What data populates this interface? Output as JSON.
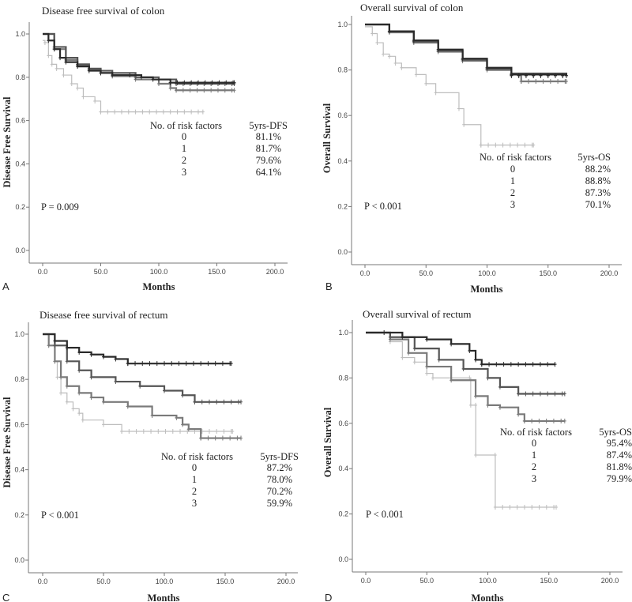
{
  "chart_data": [
    {
      "type": "line",
      "panel_letter": "A",
      "title": "Disease free survival of colon",
      "xlabel": "Months",
      "ylabel": "Disease Free Survival",
      "xlim": [
        0,
        200
      ],
      "ylim": [
        0,
        1
      ],
      "xticks": [
        "0.0",
        "50.0",
        "100.0",
        "150.0",
        "200.0"
      ],
      "yticks": [
        "0.0",
        "0.2",
        "0.4",
        "0.6",
        "0.8",
        "1.0"
      ],
      "table_header": [
        "No. of risk factors",
        "5yrs-DFS"
      ],
      "table_rows": [
        [
          "0",
          "81.1%"
        ],
        [
          "1",
          "81.7%"
        ],
        [
          "2",
          "79.6%"
        ],
        [
          "3",
          "64.1%"
        ]
      ],
      "p_value": "P = 0.009",
      "series": [
        {
          "name": "0",
          "color": "#2a2a2a",
          "points": [
            [
              0,
              1
            ],
            [
              5,
              0.97
            ],
            [
              10,
              0.93
            ],
            [
              15,
              0.89
            ],
            [
              20,
              0.87
            ],
            [
              30,
              0.85
            ],
            [
              40,
              0.83
            ],
            [
              50,
              0.82
            ],
            [
              60,
              0.81
            ],
            [
              75,
              0.81
            ],
            [
              85,
              0.8
            ],
            [
              95,
              0.79
            ],
            [
              110,
              0.775
            ],
            [
              165,
              0.775
            ]
          ]
        },
        {
          "name": "1",
          "color": "#555555",
          "points": [
            [
              0,
              1
            ],
            [
              10,
              0.94
            ],
            [
              20,
              0.89
            ],
            [
              30,
              0.86
            ],
            [
              40,
              0.84
            ],
            [
              50,
              0.83
            ],
            [
              60,
              0.82
            ],
            [
              80,
              0.8
            ],
            [
              100,
              0.79
            ],
            [
              115,
              0.77
            ],
            [
              165,
              0.77
            ]
          ]
        },
        {
          "name": "2",
          "color": "#7a7a7a",
          "points": [
            [
              0,
              1
            ],
            [
              10,
              0.93
            ],
            [
              20,
              0.88
            ],
            [
              30,
              0.855
            ],
            [
              40,
              0.835
            ],
            [
              50,
              0.82
            ],
            [
              60,
              0.805
            ],
            [
              80,
              0.79
            ],
            [
              100,
              0.77
            ],
            [
              110,
              0.75
            ],
            [
              115,
              0.74
            ],
            [
              165,
              0.74
            ]
          ]
        },
        {
          "name": "3",
          "color": "#bdbdbd",
          "points": [
            [
              0,
              0.97
            ],
            [
              2,
              0.96
            ],
            [
              5,
              0.9
            ],
            [
              8,
              0.86
            ],
            [
              12,
              0.84
            ],
            [
              18,
              0.81
            ],
            [
              25,
              0.77
            ],
            [
              30,
              0.75
            ],
            [
              35,
              0.71
            ],
            [
              45,
              0.69
            ],
            [
              50,
              0.64
            ],
            [
              138,
              0.64
            ]
          ]
        }
      ]
    },
    {
      "type": "line",
      "panel_letter": "B",
      "title": "Overall survival of colon",
      "xlabel": "Months",
      "ylabel": "Overall Survival",
      "xlim": [
        0,
        200
      ],
      "ylim": [
        0,
        1
      ],
      "xticks": [
        "0.0",
        "50.0",
        "100.0",
        "150.0",
        "200.0"
      ],
      "yticks": [
        "0.0",
        "0.2",
        "0.4",
        "0.6",
        "0.8",
        "1.0"
      ],
      "table_header": [
        "No. of risk factors",
        "5yrs-OS"
      ],
      "table_rows": [
        [
          "0",
          "88.2%"
        ],
        [
          "1",
          "88.8%"
        ],
        [
          "2",
          "87.3%"
        ],
        [
          "3",
          "70.1%"
        ]
      ],
      "p_value": "P < 0.001",
      "series": [
        {
          "name": "0",
          "color": "#2a2a2a",
          "points": [
            [
              0,
              1
            ],
            [
              20,
              0.97
            ],
            [
              40,
              0.93
            ],
            [
              60,
              0.89
            ],
            [
              80,
              0.85
            ],
            [
              100,
              0.81
            ],
            [
              120,
              0.78
            ],
            [
              165,
              0.775
            ]
          ]
        },
        {
          "name": "1",
          "color": "#555555",
          "points": [
            [
              0,
              1
            ],
            [
              20,
              0.97
            ],
            [
              40,
              0.925
            ],
            [
              60,
              0.885
            ],
            [
              80,
              0.845
            ],
            [
              100,
              0.805
            ],
            [
              120,
              0.785
            ],
            [
              165,
              0.775
            ]
          ]
        },
        {
          "name": "2",
          "color": "#7a7a7a",
          "points": [
            [
              0,
              1
            ],
            [
              20,
              0.965
            ],
            [
              40,
              0.92
            ],
            [
              60,
              0.88
            ],
            [
              80,
              0.84
            ],
            [
              100,
              0.8
            ],
            [
              120,
              0.78
            ],
            [
              128,
              0.75
            ],
            [
              165,
              0.75
            ]
          ]
        },
        {
          "name": "3",
          "color": "#bdbdbd",
          "points": [
            [
              0,
              0.99
            ],
            [
              6,
              0.96
            ],
            [
              10,
              0.92
            ],
            [
              15,
              0.87
            ],
            [
              20,
              0.86
            ],
            [
              25,
              0.83
            ],
            [
              30,
              0.81
            ],
            [
              42,
              0.78
            ],
            [
              50,
              0.74
            ],
            [
              58,
              0.7
            ],
            [
              77,
              0.63
            ],
            [
              81,
              0.56
            ],
            [
              95,
              0.47
            ],
            [
              138,
              0.47
            ]
          ]
        }
      ]
    },
    {
      "type": "line",
      "panel_letter": "C",
      "title": "Disease free survival of rectum",
      "xlabel": "Months",
      "ylabel": "Disease Free Survival",
      "xlim": [
        0,
        200
      ],
      "ylim": [
        0,
        1
      ],
      "xticks": [
        "0.0",
        "50.0",
        "100.0",
        "150.0",
        "200.0"
      ],
      "yticks": [
        "0.0",
        "0.2",
        "0.4",
        "0.6",
        "0.8",
        "1.0"
      ],
      "table_header": [
        "No. of risk factors",
        "5yrs-DFS"
      ],
      "table_rows": [
        [
          "0",
          "87.2%"
        ],
        [
          "1",
          "78.0%"
        ],
        [
          "2",
          "70.2%"
        ],
        [
          "3",
          "59.9%"
        ]
      ],
      "p_value": "P < 0.001",
      "series": [
        {
          "name": "0",
          "color": "#2a2a2a",
          "points": [
            [
              0,
              1
            ],
            [
              10,
              0.97
            ],
            [
              20,
              0.94
            ],
            [
              30,
              0.92
            ],
            [
              40,
              0.91
            ],
            [
              50,
              0.9
            ],
            [
              60,
              0.89
            ],
            [
              70,
              0.87
            ],
            [
              155,
              0.87
            ]
          ]
        },
        {
          "name": "1",
          "color": "#555555",
          "points": [
            [
              0,
              1
            ],
            [
              10,
              0.95
            ],
            [
              20,
              0.88
            ],
            [
              30,
              0.84
            ],
            [
              40,
              0.81
            ],
            [
              60,
              0.79
            ],
            [
              80,
              0.77
            ],
            [
              100,
              0.75
            ],
            [
              115,
              0.73
            ],
            [
              125,
              0.7
            ],
            [
              163,
              0.7
            ]
          ]
        },
        {
          "name": "2",
          "color": "#7a7a7a",
          "points": [
            [
              0,
              1
            ],
            [
              5,
              0.95
            ],
            [
              10,
              0.88
            ],
            [
              15,
              0.81
            ],
            [
              20,
              0.77
            ],
            [
              30,
              0.74
            ],
            [
              40,
              0.72
            ],
            [
              50,
              0.7
            ],
            [
              70,
              0.68
            ],
            [
              90,
              0.64
            ],
            [
              110,
              0.63
            ],
            [
              115,
              0.6
            ],
            [
              120,
              0.58
            ],
            [
              130,
              0.54
            ],
            [
              163,
              0.54
            ]
          ]
        },
        {
          "name": "3",
          "color": "#bdbdbd",
          "points": [
            [
              0,
              1
            ],
            [
              5,
              0.95
            ],
            [
              10,
              0.88
            ],
            [
              12,
              0.81
            ],
            [
              15,
              0.74
            ],
            [
              20,
              0.7
            ],
            [
              25,
              0.67
            ],
            [
              30,
              0.65
            ],
            [
              33,
              0.62
            ],
            [
              50,
              0.6
            ],
            [
              65,
              0.57
            ],
            [
              156,
              0.57
            ]
          ]
        }
      ]
    },
    {
      "type": "line",
      "panel_letter": "D",
      "title": "Overall survival of rectum",
      "xlabel": "Months",
      "ylabel": "Overall Survival",
      "xlim": [
        0,
        200
      ],
      "ylim": [
        0,
        1
      ],
      "xticks": [
        "0.0",
        "50.0",
        "100.0",
        "150.0",
        "200.0"
      ],
      "yticks": [
        "0.0",
        "0.2",
        "0.4",
        "0.6",
        "0.8",
        "1.0"
      ],
      "table_header": [
        "No. of risk factors",
        "5yrs-OS"
      ],
      "table_rows": [
        [
          "0",
          "95.4%"
        ],
        [
          "1",
          "87.4%"
        ],
        [
          "2",
          "81.8%"
        ],
        [
          "3",
          "79.9%"
        ]
      ],
      "p_value": "P < 0.001",
      "series": [
        {
          "name": "0",
          "color": "#2a2a2a",
          "points": [
            [
              0,
              1
            ],
            [
              15,
              1.0
            ],
            [
              30,
              0.98
            ],
            [
              50,
              0.97
            ],
            [
              70,
              0.95
            ],
            [
              85,
              0.92
            ],
            [
              90,
              0.88
            ],
            [
              95,
              0.86
            ],
            [
              155,
              0.86
            ]
          ]
        },
        {
          "name": "1",
          "color": "#555555",
          "points": [
            [
              0,
              1
            ],
            [
              20,
              0.98
            ],
            [
              40,
              0.93
            ],
            [
              60,
              0.88
            ],
            [
              80,
              0.84
            ],
            [
              100,
              0.8
            ],
            [
              110,
              0.76
            ],
            [
              125,
              0.73
            ],
            [
              163,
              0.73
            ]
          ]
        },
        {
          "name": "2",
          "color": "#7a7a7a",
          "points": [
            [
              0,
              1
            ],
            [
              20,
              0.97
            ],
            [
              35,
              0.91
            ],
            [
              50,
              0.85
            ],
            [
              70,
              0.79
            ],
            [
              90,
              0.72
            ],
            [
              100,
              0.68
            ],
            [
              110,
              0.67
            ],
            [
              125,
              0.64
            ],
            [
              130,
              0.61
            ],
            [
              163,
              0.61
            ]
          ]
        },
        {
          "name": "3",
          "color": "#bdbdbd",
          "points": [
            [
              0,
              1
            ],
            [
              20,
              0.96
            ],
            [
              30,
              0.89
            ],
            [
              40,
              0.87
            ],
            [
              50,
              0.82
            ],
            [
              55,
              0.8
            ],
            [
              85,
              0.8
            ],
            [
              86,
              0.68
            ],
            [
              90,
              0.68
            ],
            [
              90.1,
              0.46
            ],
            [
              106,
              0.46
            ],
            [
              106.1,
              0.23
            ],
            [
              156,
              0.23
            ]
          ]
        }
      ]
    }
  ]
}
